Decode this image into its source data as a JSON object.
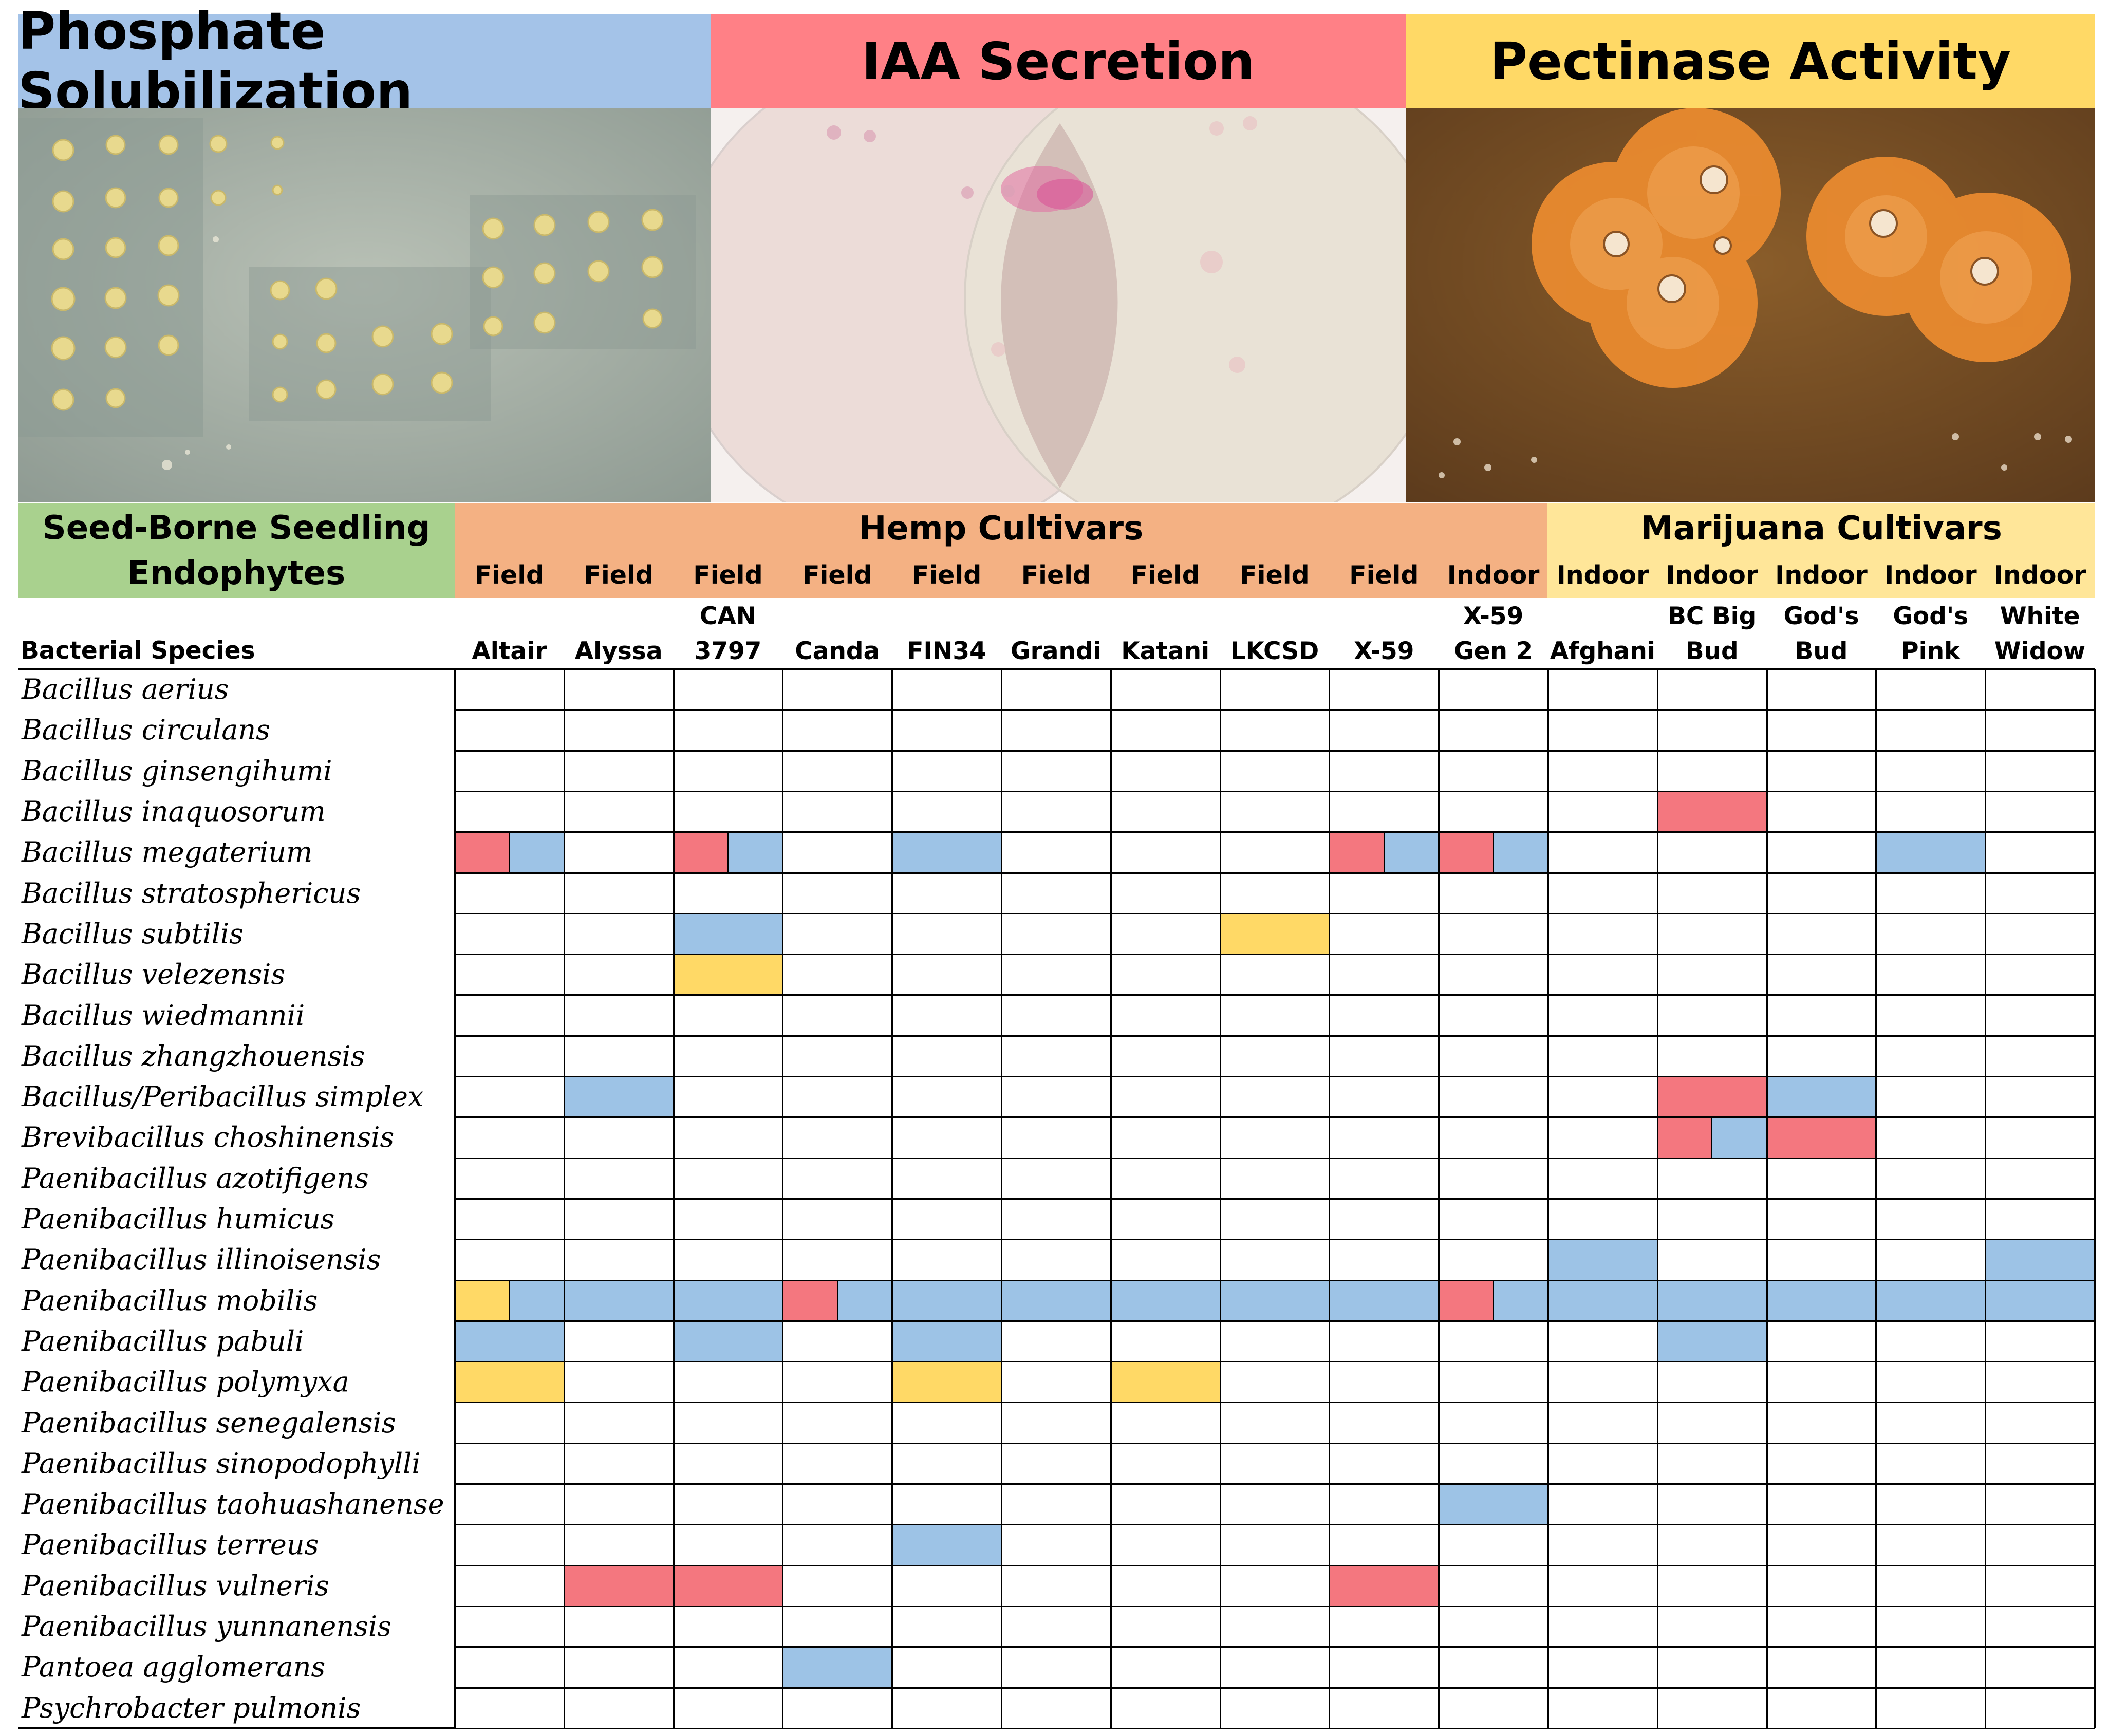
{
  "chart_data": {
    "type": "table",
    "title_bars": [
      {
        "label": "Phosphate Solubilization",
        "color": "#a4c3e8"
      },
      {
        "label": "IAA Secretion",
        "color": "#ff8086"
      },
      {
        "label": "Pectinase Activity",
        "color": "#ffd966"
      }
    ],
    "legend_colors": {
      "phosphate": "#9dc3e6",
      "iaa": "#f4777f",
      "pectinase": "#ffd966"
    },
    "group_headers": {
      "endophytes": {
        "line1": "Seed-Borne Seedling",
        "line2": "Endophytes",
        "color": "#a9d18e"
      },
      "hemp": {
        "label": "Hemp Cultivars",
        "color": "#f4b183"
      },
      "marijuana": {
        "label": "Marijuana Cultivars",
        "color": "#ffe699"
      }
    },
    "row_header": "Bacterial Species",
    "columns": [
      {
        "setting": "Field",
        "name1": "",
        "name2": "Altair",
        "group": "hemp"
      },
      {
        "setting": "Field",
        "name1": "",
        "name2": "Alyssa",
        "group": "hemp"
      },
      {
        "setting": "Field",
        "name1": "CAN",
        "name2": "3797",
        "group": "hemp"
      },
      {
        "setting": "Field",
        "name1": "",
        "name2": "Canda",
        "group": "hemp"
      },
      {
        "setting": "Field",
        "name1": "",
        "name2": "FIN34",
        "group": "hemp"
      },
      {
        "setting": "Field",
        "name1": "",
        "name2": "Grandi",
        "group": "hemp"
      },
      {
        "setting": "Field",
        "name1": "",
        "name2": "Katani",
        "group": "hemp"
      },
      {
        "setting": "Field",
        "name1": "",
        "name2": "LKCSD",
        "group": "hemp"
      },
      {
        "setting": "Field",
        "name1": "",
        "name2": "X-59",
        "group": "hemp"
      },
      {
        "setting": "Indoor",
        "name1": "X-59",
        "name2": "Gen 2",
        "group": "hemp"
      },
      {
        "setting": "Indoor",
        "name1": "",
        "name2": "Afghani",
        "group": "marijuana"
      },
      {
        "setting": "Indoor",
        "name1": "BC Big",
        "name2": "Bud",
        "group": "marijuana"
      },
      {
        "setting": "Indoor",
        "name1": "God's",
        "name2": "Bud",
        "group": "marijuana"
      },
      {
        "setting": "Indoor",
        "name1": "God's",
        "name2": "Pink",
        "group": "marijuana"
      },
      {
        "setting": "Indoor",
        "name1": "White",
        "name2": "Widow",
        "group": "marijuana"
      }
    ],
    "rows": [
      "Bacillus aerius",
      "Bacillus circulans",
      "Bacillus ginsengihumi",
      "Bacillus inaquosorum",
      "Bacillus megaterium",
      "Bacillus stratosphericus",
      "Bacillus subtilis",
      "Bacillus velezensis",
      "Bacillus wiedmannii",
      "Bacillus zhangzhouensis",
      "Bacillus/Peribacillus simplex",
      "Brevibacillus choshinensis",
      "Paenibacillus azotifigens",
      "Paenibacillus humicus",
      "Paenibacillus illinoisensis",
      "Paenibacillus mobilis",
      "Paenibacillus pabuli",
      "Paenibacillus polymyxa",
      "Paenibacillus senegalensis",
      "Paenibacillus sinopodophylli",
      "Paenibacillus taohuashanense",
      "Paenibacillus terreus",
      "Paenibacillus vulneris",
      "Paenibacillus yunnanensis",
      "Pantoea agglomerans",
      "Psychrobacter pulmonis"
    ],
    "cells": [
      {
        "row": 3,
        "col": 11,
        "activities": [
          "iaa"
        ]
      },
      {
        "row": 4,
        "col": 0,
        "activities": [
          "iaa",
          "phosphate"
        ]
      },
      {
        "row": 4,
        "col": 2,
        "activities": [
          "iaa",
          "phosphate"
        ]
      },
      {
        "row": 4,
        "col": 4,
        "activities": [
          "phosphate"
        ]
      },
      {
        "row": 4,
        "col": 8,
        "activities": [
          "iaa",
          "phosphate"
        ]
      },
      {
        "row": 4,
        "col": 9,
        "activities": [
          "iaa",
          "phosphate"
        ]
      },
      {
        "row": 4,
        "col": 13,
        "activities": [
          "phosphate"
        ]
      },
      {
        "row": 6,
        "col": 2,
        "activities": [
          "phosphate"
        ]
      },
      {
        "row": 6,
        "col": 7,
        "activities": [
          "pectinase"
        ]
      },
      {
        "row": 7,
        "col": 2,
        "activities": [
          "pectinase"
        ]
      },
      {
        "row": 10,
        "col": 1,
        "activities": [
          "phosphate"
        ]
      },
      {
        "row": 10,
        "col": 11,
        "activities": [
          "iaa"
        ]
      },
      {
        "row": 10,
        "col": 12,
        "activities": [
          "phosphate"
        ]
      },
      {
        "row": 11,
        "col": 11,
        "activities": [
          "iaa",
          "phosphate"
        ]
      },
      {
        "row": 11,
        "col": 12,
        "activities": [
          "iaa"
        ]
      },
      {
        "row": 14,
        "col": 10,
        "activities": [
          "phosphate"
        ]
      },
      {
        "row": 14,
        "col": 14,
        "activities": [
          "phosphate"
        ]
      },
      {
        "row": 15,
        "col": 0,
        "activities": [
          "pectinase",
          "phosphate"
        ]
      },
      {
        "row": 15,
        "col": 1,
        "activities": [
          "phosphate"
        ]
      },
      {
        "row": 15,
        "col": 2,
        "activities": [
          "phosphate"
        ]
      },
      {
        "row": 15,
        "col": 3,
        "activities": [
          "iaa",
          "phosphate"
        ]
      },
      {
        "row": 15,
        "col": 4,
        "activities": [
          "phosphate"
        ]
      },
      {
        "row": 15,
        "col": 5,
        "activities": [
          "phosphate"
        ]
      },
      {
        "row": 15,
        "col": 6,
        "activities": [
          "phosphate"
        ]
      },
      {
        "row": 15,
        "col": 7,
        "activities": [
          "phosphate"
        ]
      },
      {
        "row": 15,
        "col": 8,
        "activities": [
          "phosphate"
        ]
      },
      {
        "row": 15,
        "col": 9,
        "activities": [
          "iaa",
          "phosphate"
        ]
      },
      {
        "row": 15,
        "col": 10,
        "activities": [
          "phosphate"
        ]
      },
      {
        "row": 15,
        "col": 11,
        "activities": [
          "phosphate"
        ]
      },
      {
        "row": 15,
        "col": 12,
        "activities": [
          "phosphate"
        ]
      },
      {
        "row": 15,
        "col": 13,
        "activities": [
          "phosphate"
        ]
      },
      {
        "row": 15,
        "col": 14,
        "activities": [
          "phosphate"
        ]
      },
      {
        "row": 16,
        "col": 0,
        "activities": [
          "phosphate"
        ]
      },
      {
        "row": 16,
        "col": 2,
        "activities": [
          "phosphate"
        ]
      },
      {
        "row": 16,
        "col": 4,
        "activities": [
          "phosphate"
        ]
      },
      {
        "row": 16,
        "col": 11,
        "activities": [
          "phosphate"
        ]
      },
      {
        "row": 17,
        "col": 0,
        "activities": [
          "pectinase"
        ]
      },
      {
        "row": 17,
        "col": 4,
        "activities": [
          "pectinase"
        ]
      },
      {
        "row": 17,
        "col": 6,
        "activities": [
          "pectinase"
        ]
      },
      {
        "row": 20,
        "col": 9,
        "activities": [
          "phosphate"
        ]
      },
      {
        "row": 21,
        "col": 4,
        "activities": [
          "phosphate"
        ]
      },
      {
        "row": 22,
        "col": 1,
        "activities": [
          "iaa"
        ]
      },
      {
        "row": 22,
        "col": 2,
        "activities": [
          "iaa"
        ]
      },
      {
        "row": 22,
        "col": 8,
        "activities": [
          "iaa"
        ]
      },
      {
        "row": 24,
        "col": 3,
        "activities": [
          "phosphate"
        ]
      }
    ]
  }
}
